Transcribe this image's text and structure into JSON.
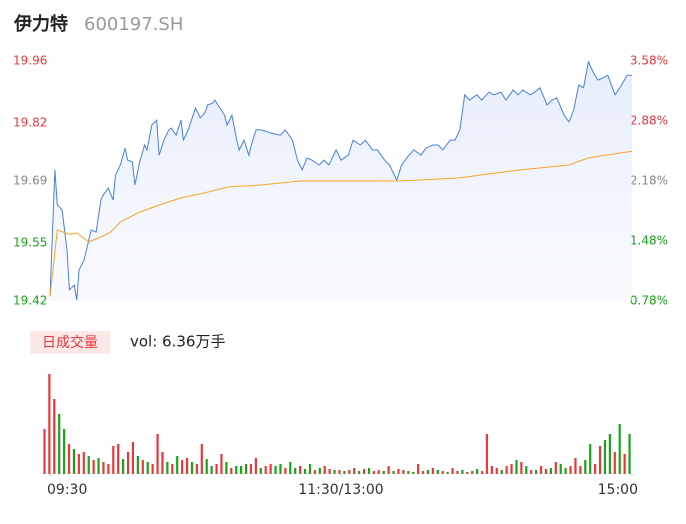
{
  "chart_data": {
    "type": "intraday",
    "title": "伊力特",
    "subtitle": "600197.SH",
    "volume_title": "日成交量",
    "volume_label": "vol: 6.36万手",
    "xlim": [
      0,
      240
    ],
    "xticks": [
      {
        "value": 0,
        "label": "09:30"
      },
      {
        "value": 120,
        "label": "11:30/13:00"
      },
      {
        "value": 240,
        "label": "15:00"
      }
    ],
    "ylim": [
      19.42,
      19.96
    ],
    "yticks": [
      19.42,
      19.55,
      19.69,
      19.82,
      19.96
    ],
    "y2lim": [
      0.78,
      3.58
    ],
    "y2ticks": [
      {
        "value": 0.78,
        "label": "0.78%"
      },
      {
        "value": 1.48,
        "label": "1.48%"
      },
      {
        "value": 2.18,
        "label": "2.18%"
      },
      {
        "value": 2.88,
        "label": "2.88%"
      },
      {
        "value": 3.58,
        "label": "3.58%"
      }
    ],
    "tick_colors": [
      "#1aa31a",
      "#1aa31a",
      "#888888",
      "#e8383d",
      "#e8383d"
    ],
    "series": [
      {
        "color": "#4a7fe0",
        "area": true,
        "x": [
          0,
          2,
          3,
          5,
          7,
          8,
          10,
          11,
          12,
          14,
          16,
          17,
          19,
          21,
          22,
          24,
          26,
          27,
          29,
          31,
          32,
          34,
          35,
          37,
          39,
          40,
          42,
          44,
          45,
          47,
          49,
          50,
          52,
          54,
          55,
          57,
          59,
          60,
          62,
          64,
          65,
          67,
          68,
          70,
          72,
          73,
          75,
          77,
          78,
          80,
          82,
          83,
          85,
          87,
          91,
          95,
          97,
          100,
          102,
          104,
          106,
          108,
          111,
          113,
          115,
          118,
          120,
          123,
          125,
          128,
          130,
          133,
          135,
          138,
          140,
          143,
          145,
          148,
          150,
          153,
          155,
          158,
          160,
          162,
          165,
          167,
          169,
          171,
          173,
          176,
          178,
          181,
          183,
          186,
          188,
          191,
          193,
          195,
          198,
          200,
          202,
          205,
          207,
          209,
          212,
          214,
          216,
          218,
          220,
          222,
          224,
          226,
          228,
          230,
          233,
          235,
          238,
          240
        ],
        "values": [
          19.43,
          19.715,
          19.636,
          19.625,
          19.535,
          19.445,
          19.456,
          19.422,
          19.49,
          19.512,
          19.557,
          19.58,
          19.575,
          19.647,
          19.659,
          19.674,
          19.647,
          19.703,
          19.726,
          19.764,
          19.737,
          19.733,
          19.681,
          19.733,
          19.771,
          19.76,
          19.816,
          19.827,
          19.748,
          19.782,
          19.805,
          19.809,
          19.793,
          19.827,
          19.782,
          19.805,
          19.838,
          19.854,
          19.832,
          19.845,
          19.861,
          19.865,
          19.872,
          19.854,
          19.838,
          19.816,
          19.838,
          19.782,
          19.76,
          19.782,
          19.748,
          19.771,
          19.805,
          19.805,
          19.798,
          19.793,
          19.805,
          19.782,
          19.737,
          19.715,
          19.742,
          19.737,
          19.726,
          19.737,
          19.726,
          19.76,
          19.737,
          19.748,
          19.782,
          19.771,
          19.782,
          19.76,
          19.76,
          19.737,
          19.726,
          19.692,
          19.726,
          19.748,
          19.76,
          19.748,
          19.764,
          19.771,
          19.771,
          19.76,
          19.782,
          19.782,
          19.805,
          19.884,
          19.872,
          19.884,
          19.872,
          19.89,
          19.884,
          19.89,
          19.872,
          19.895,
          19.884,
          19.895,
          19.884,
          19.89,
          19.9,
          19.861,
          19.872,
          19.877,
          19.838,
          19.823,
          19.85,
          19.906,
          19.9,
          19.958,
          19.935,
          19.917,
          19.922,
          19.928,
          19.884,
          19.9,
          19.928,
          19.928
        ]
      },
      {
        "color": "#f5a623",
        "area": false,
        "x": [
          0,
          3,
          8,
          11,
          16,
          21,
          25,
          29,
          37,
          45,
          54,
          62,
          74,
          87,
          103,
          144,
          169,
          181,
          194,
          214,
          222,
          240
        ],
        "values": [
          19.43,
          19.58,
          19.57,
          19.573,
          19.553,
          19.564,
          19.575,
          19.598,
          19.62,
          19.636,
          19.652,
          19.661,
          19.677,
          19.681,
          19.69,
          19.69,
          19.697,
          19.706,
          19.715,
          19.726,
          19.742,
          19.757
        ]
      }
    ],
    "volume": {
      "ylim": [
        0,
        100
      ],
      "up_color": "#e8383d",
      "down_color": "#1aa31a",
      "values": [
        45,
        100,
        75,
        60,
        45,
        30,
        25,
        20,
        22,
        18,
        14,
        16,
        12,
        10,
        28,
        30,
        15,
        22,
        32,
        18,
        14,
        12,
        10,
        40,
        22,
        12,
        10,
        18,
        14,
        16,
        12,
        10,
        30,
        15,
        8,
        10,
        20,
        12,
        6,
        8,
        8,
        10,
        10,
        16,
        6,
        8,
        10,
        8,
        10,
        6,
        12,
        6,
        8,
        5,
        10,
        4,
        6,
        8,
        5,
        4,
        4,
        3,
        4,
        6,
        3,
        5,
        6,
        3,
        4,
        3,
        8,
        3,
        5,
        4,
        3,
        2,
        10,
        3,
        4,
        6,
        4,
        3,
        2,
        6,
        3,
        4,
        2,
        3,
        5,
        3,
        40,
        8,
        6,
        4,
        8,
        10,
        14,
        12,
        8,
        4,
        4,
        8,
        5,
        6,
        12,
        10,
        6,
        8,
        16,
        8,
        14,
        30,
        10,
        28,
        34,
        40,
        22,
        50,
        20,
        40
      ],
      "directions": [
        "up",
        "up",
        "up",
        "down",
        "down",
        "up",
        "down",
        "up",
        "up",
        "down",
        "up",
        "down",
        "up",
        "up",
        "up",
        "up",
        "down",
        "up",
        "up",
        "down",
        "up",
        "down",
        "up",
        "up",
        "up",
        "down",
        "up",
        "down",
        "up",
        "up",
        "down",
        "up",
        "up",
        "down",
        "down",
        "up",
        "up",
        "down",
        "up",
        "down",
        "down",
        "down",
        "up",
        "up",
        "down",
        "up",
        "up",
        "down",
        "down",
        "up",
        "down",
        "down",
        "up",
        "down",
        "down",
        "up",
        "down",
        "up",
        "up",
        "down",
        "up",
        "down",
        "up",
        "up",
        "down",
        "up",
        "down",
        "up",
        "up",
        "down",
        "up",
        "down",
        "up",
        "up",
        "down",
        "down",
        "up",
        "up",
        "down",
        "up",
        "down",
        "up",
        "down",
        "up",
        "up",
        "down",
        "up",
        "up",
        "down",
        "up",
        "up",
        "up",
        "up",
        "down",
        "up",
        "up",
        "down",
        "up",
        "down",
        "up",
        "down",
        "up",
        "up",
        "down",
        "up",
        "down",
        "down",
        "up",
        "up",
        "up",
        "down",
        "down",
        "up",
        "up",
        "down",
        "down",
        "up",
        "down",
        "up",
        "down"
      ]
    }
  }
}
